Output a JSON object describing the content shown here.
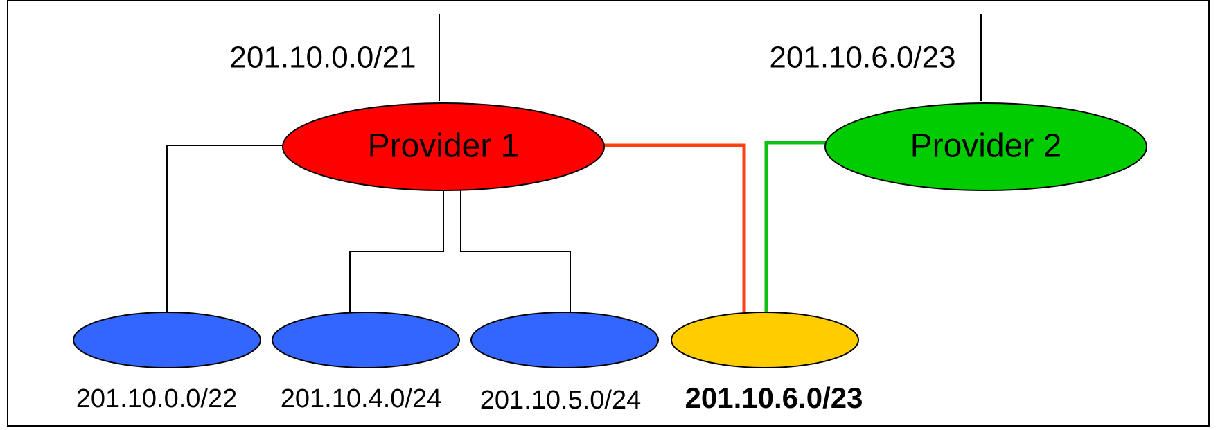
{
  "provider1": {
    "label": "Provider 1",
    "prefix": "201.10.0.0/21"
  },
  "provider2": {
    "label": "Provider 2",
    "prefix": "201.10.6.0/23"
  },
  "customers": [
    "201.10.0.0/22",
    "201.10.4.0/24",
    "201.10.5.0/24",
    "201.10.6.0/23"
  ]
}
